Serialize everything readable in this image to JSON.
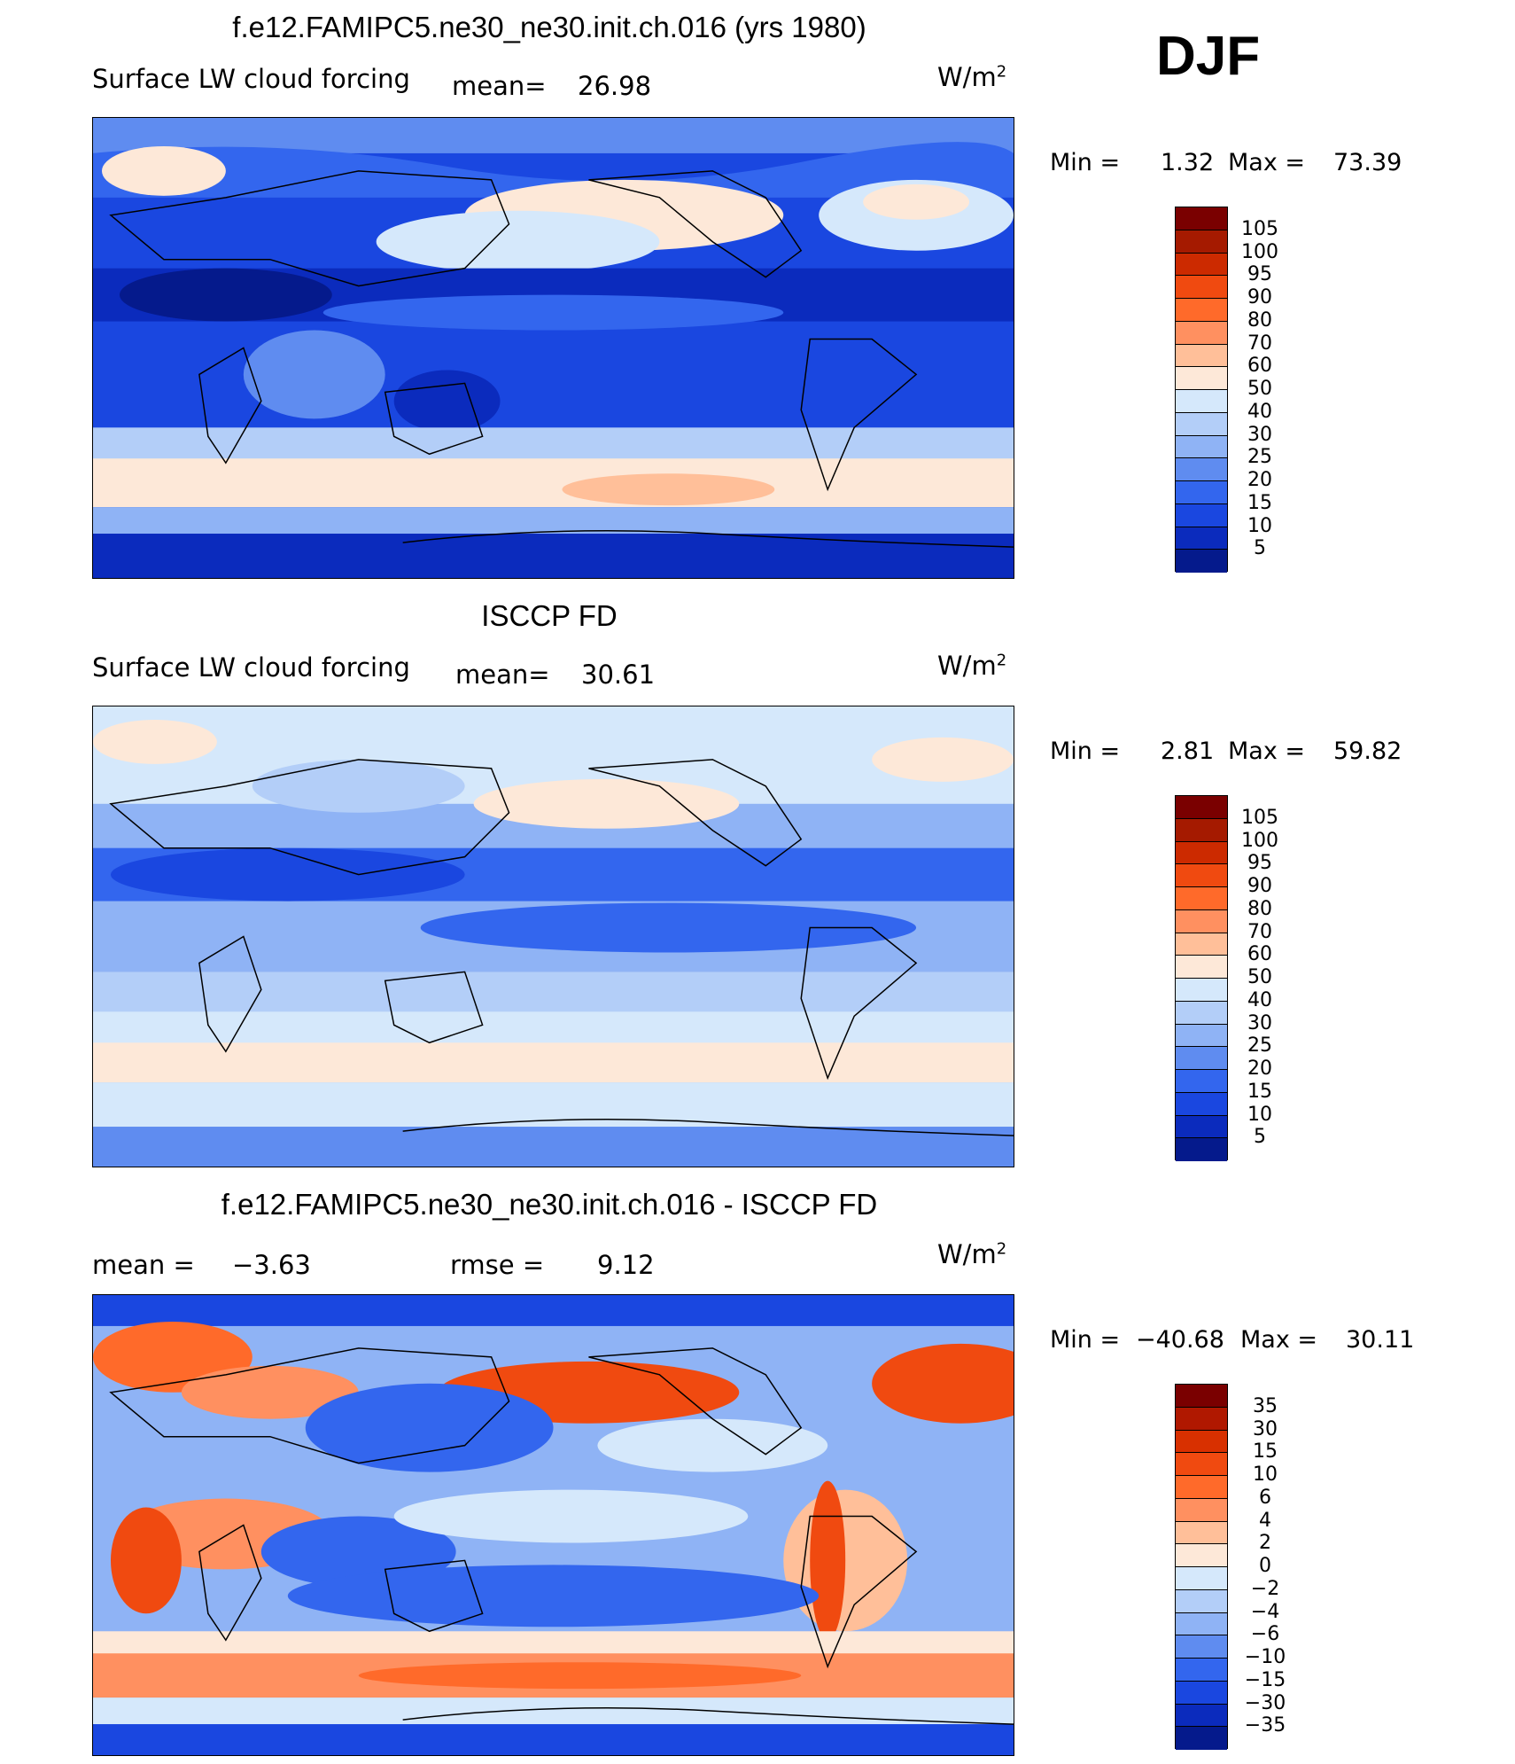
{
  "season": "DJF",
  "panels": [
    {
      "id": "model",
      "title": "f.e12.FAMIPC5.ne30_ne30.init.ch.016 (yrs 1980)",
      "subtitle_left": "Surface LW cloud forcing",
      "mean_label": "mean=",
      "mean_value": "26.98",
      "units": "W/m",
      "units_sup": "2",
      "min_label": "Min =",
      "min_value": "1.32",
      "max_label": "Max =",
      "max_value": "73.39",
      "colorbar_labels": [
        "105",
        "100",
        "95",
        "90",
        "80",
        "70",
        "60",
        "50",
        "40",
        "30",
        "25",
        "20",
        "15",
        "10",
        "5"
      ]
    },
    {
      "id": "obs",
      "title": "ISCCP FD",
      "subtitle_left": "Surface LW cloud forcing",
      "mean_label": "mean=",
      "mean_value": "30.61",
      "units": "W/m",
      "units_sup": "2",
      "min_label": "Min =",
      "min_value": "2.81",
      "max_label": "Max =",
      "max_value": "59.82",
      "colorbar_labels": [
        "105",
        "100",
        "95",
        "90",
        "80",
        "70",
        "60",
        "50",
        "40",
        "30",
        "25",
        "20",
        "15",
        "10",
        "5"
      ]
    },
    {
      "id": "diff",
      "title": "f.e12.FAMIPC5.ne30_ne30.init.ch.016 - ISCCP FD",
      "mean_label": "mean =",
      "mean_value": "−3.63",
      "rmse_label": "rmse =",
      "rmse_value": "9.12",
      "units": "W/m",
      "units_sup": "2",
      "min_label": "Min =",
      "min_value": "−40.68",
      "max_label": "Max =",
      "max_value": "30.11",
      "colorbar_labels": [
        "35",
        "30",
        "15",
        "10",
        "6",
        "4",
        "2",
        "0",
        "−2",
        "−4",
        "−6",
        "−10",
        "−15",
        "−30",
        "−35"
      ]
    }
  ],
  "colors": {
    "field_bar": [
      "#7a0000",
      "#a51a00",
      "#cc2a00",
      "#f04a10",
      "#ff6a2a",
      "#ff9060",
      "#ffbf99",
      "#fde8d8",
      "#d5e8fb",
      "#b3cef8",
      "#8fb3f5",
      "#5f8cf0",
      "#3366ee",
      "#1a47e0",
      "#0b2bbd",
      "#051a8c"
    ],
    "diff_bar": [
      "#7a0000",
      "#b01800",
      "#d83000",
      "#f04a10",
      "#ff6a2a",
      "#ff9060",
      "#ffbf99",
      "#fde8d8",
      "#d5e8fb",
      "#b3cef8",
      "#8fb3f5",
      "#5f8cf0",
      "#3366ee",
      "#1a47e0",
      "#0b2bbd",
      "#051a8c"
    ]
  }
}
